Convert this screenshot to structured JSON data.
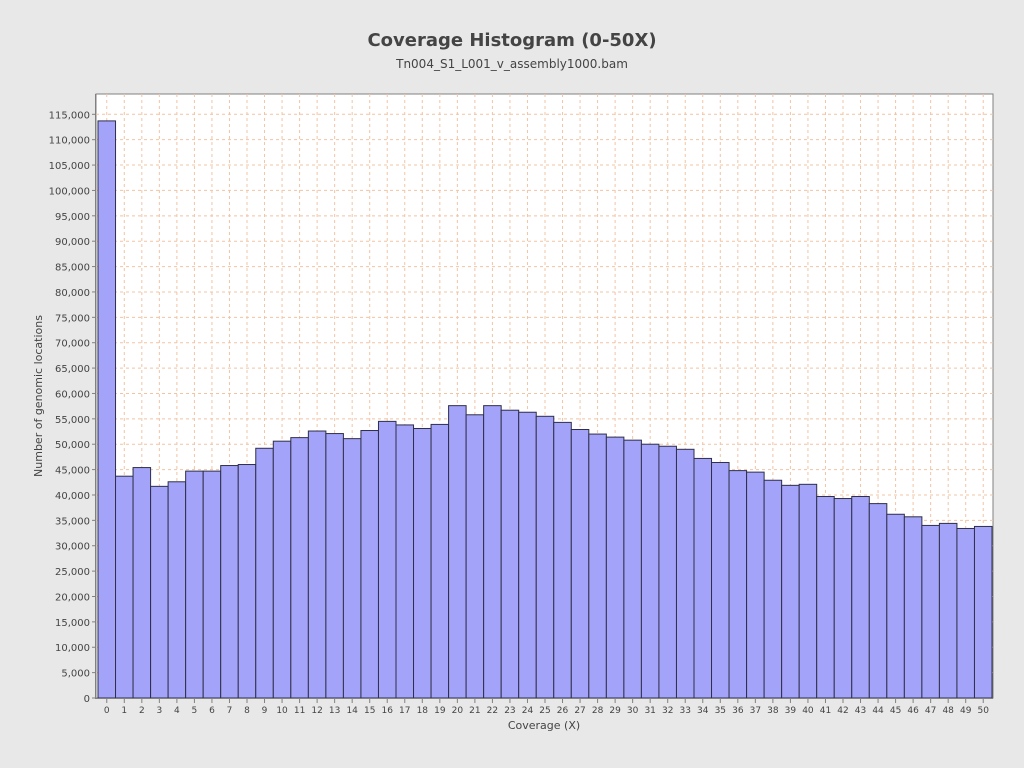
{
  "chart_data": {
    "type": "bar",
    "title": "Coverage Histogram (0-50X)",
    "subtitle": "Tn004_S1_L001_v_assembly1000.bam",
    "xlabel": "Coverage (X)",
    "ylabel": "Number of genomic locations",
    "ylim": [
      0,
      119000
    ],
    "yticks": [
      0,
      5000,
      10000,
      15000,
      20000,
      25000,
      30000,
      35000,
      40000,
      45000,
      50000,
      55000,
      60000,
      65000,
      70000,
      75000,
      80000,
      85000,
      90000,
      95000,
      100000,
      105000,
      110000,
      115000
    ],
    "ytick_labels": [
      "0",
      "5,000",
      "10,000",
      "15,000",
      "20,000",
      "25,000",
      "30,000",
      "35,000",
      "40,000",
      "45,000",
      "50,000",
      "55,000",
      "60,000",
      "65,000",
      "70,000",
      "75,000",
      "80,000",
      "85,000",
      "90,000",
      "95,000",
      "100,000",
      "105,000",
      "110,000",
      "115,000"
    ],
    "categories": [
      "0",
      "1",
      "2",
      "3",
      "4",
      "5",
      "6",
      "7",
      "8",
      "9",
      "10",
      "11",
      "12",
      "13",
      "14",
      "15",
      "16",
      "17",
      "18",
      "19",
      "20",
      "21",
      "22",
      "23",
      "24",
      "25",
      "26",
      "27",
      "28",
      "29",
      "30",
      "31",
      "32",
      "33",
      "34",
      "35",
      "36",
      "37",
      "38",
      "39",
      "40",
      "41",
      "42",
      "43",
      "44",
      "45",
      "46",
      "47",
      "48",
      "49",
      "50"
    ],
    "values": [
      113700,
      43700,
      45400,
      41700,
      42600,
      44700,
      44700,
      45800,
      46000,
      49200,
      50600,
      51300,
      52600,
      52100,
      51100,
      52700,
      54500,
      53800,
      53100,
      53900,
      57600,
      55800,
      57600,
      56700,
      56300,
      55500,
      54300,
      52900,
      52000,
      51400,
      50800,
      50000,
      49600,
      49000,
      47200,
      46400,
      44800,
      44500,
      42900,
      41900,
      42100,
      39700,
      39300,
      39700,
      38300,
      36200,
      35700,
      34000,
      34400,
      33400,
      33800
    ],
    "grid": true,
    "bar_color": "#a3a3fa"
  }
}
